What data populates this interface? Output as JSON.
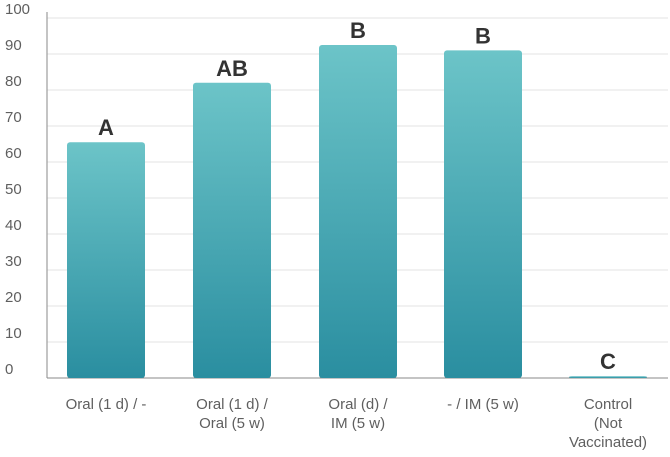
{
  "chart_data": {
    "type": "bar",
    "title": "",
    "xlabel": "",
    "ylabel": "",
    "ylim": [
      0,
      100
    ],
    "yticks": [
      0,
      10,
      20,
      30,
      40,
      50,
      60,
      70,
      80,
      90,
      100
    ],
    "grid": true,
    "categories": [
      [
        "Oral (1 d) / -"
      ],
      [
        "Oral (1 d) /",
        "Oral (5 w)"
      ],
      [
        "Oral (d) /",
        "IM (5 w)"
      ],
      [
        "- / IM (5 w)"
      ],
      [
        "Control",
        "(Not",
        "Vaccinated)"
      ]
    ],
    "values": [
      65.5,
      82,
      92.5,
      91,
      0.5
    ],
    "data_labels": [
      "A",
      "AB",
      "B",
      "B",
      "C"
    ],
    "colors": {
      "bar_top": "#6cc4c8",
      "bar_bottom": "#2a8ea0",
      "grid": "#e3e3e3",
      "axis": "#8a8a8a"
    }
  }
}
